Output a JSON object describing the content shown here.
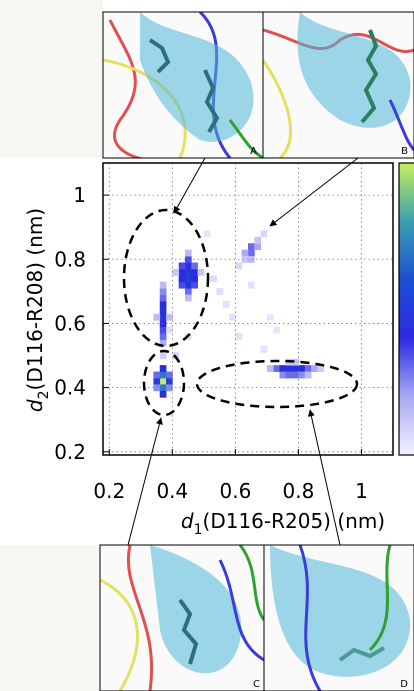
{
  "chart_data": {
    "type": "heatmap",
    "x_label": {
      "symbol": "d",
      "subscript": "1",
      "text": "(D116-R205) (nm)"
    },
    "y_label": {
      "symbol": "d",
      "subscript": "2",
      "text": "(D116-R208) (nm)"
    },
    "xlim": [
      0.18,
      1.1
    ],
    "ylim": [
      0.19,
      1.1
    ],
    "xticks": [
      0.2,
      0.4,
      0.6,
      0.8,
      1
    ],
    "yticks": [
      0.2,
      0.4,
      0.6,
      0.8,
      1
    ],
    "grid": true,
    "bin_size": 0.02,
    "zlim": [
      0,
      1
    ],
    "colormap": [
      "#f4f2ff",
      "#a9a9f5",
      "#2b2be2",
      "#1c4fd2",
      "#3a9fb0",
      "#c6f05a"
    ],
    "x": [
      0.37,
      0.37,
      0.37,
      0.35,
      0.39,
      0.37,
      0.37,
      0.35,
      0.39,
      0.35,
      0.39,
      0.37,
      0.37,
      0.37,
      0.37,
      0.37,
      0.37,
      0.37,
      0.37,
      0.37,
      0.35,
      0.39,
      0.37,
      0.37,
      0.45,
      0.45,
      0.45,
      0.45,
      0.45,
      0.45,
      0.43,
      0.43,
      0.43,
      0.43,
      0.47,
      0.47,
      0.47,
      0.47,
      0.45,
      0.45,
      0.41,
      0.49,
      0.65,
      0.65,
      0.63,
      0.67,
      0.63,
      0.67,
      0.65,
      0.69,
      0.61,
      0.73,
      0.75,
      0.77,
      0.79,
      0.81,
      0.83,
      0.85,
      0.87,
      0.71,
      0.75,
      0.77,
      0.79,
      0.81,
      0.83,
      0.77,
      0.79,
      0.55,
      0.57,
      0.53,
      0.59,
      0.61,
      0.69,
      0.73,
      0.71,
      0.65,
      0.41,
      0.45,
      0.51,
      0.39
    ],
    "y": [
      0.42,
      0.44,
      0.4,
      0.42,
      0.42,
      0.46,
      0.38,
      0.44,
      0.44,
      0.4,
      0.4,
      0.54,
      0.56,
      0.58,
      0.6,
      0.62,
      0.64,
      0.66,
      0.68,
      0.7,
      0.62,
      0.62,
      0.72,
      0.5,
      0.7,
      0.72,
      0.74,
      0.76,
      0.78,
      0.8,
      0.72,
      0.74,
      0.76,
      0.78,
      0.72,
      0.74,
      0.76,
      0.78,
      0.82,
      0.68,
      0.76,
      0.76,
      0.82,
      0.84,
      0.82,
      0.84,
      0.8,
      0.86,
      0.8,
      0.88,
      0.78,
      0.46,
      0.46,
      0.46,
      0.46,
      0.46,
      0.46,
      0.46,
      0.46,
      0.46,
      0.44,
      0.44,
      0.44,
      0.44,
      0.44,
      0.48,
      0.48,
      0.7,
      0.66,
      0.74,
      0.62,
      0.56,
      0.52,
      0.58,
      0.62,
      0.72,
      0.5,
      0.56,
      0.88,
      0.58
    ],
    "values": [
      1.0,
      0.7,
      0.7,
      0.5,
      0.5,
      0.4,
      0.4,
      0.3,
      0.3,
      0.25,
      0.25,
      0.2,
      0.3,
      0.35,
      0.4,
      0.45,
      0.45,
      0.4,
      0.3,
      0.25,
      0.15,
      0.15,
      0.15,
      0.1,
      0.3,
      0.45,
      0.5,
      0.5,
      0.45,
      0.35,
      0.35,
      0.4,
      0.4,
      0.35,
      0.35,
      0.4,
      0.4,
      0.3,
      0.15,
      0.15,
      0.12,
      0.12,
      0.3,
      0.3,
      0.2,
      0.2,
      0.12,
      0.12,
      0.15,
      0.08,
      0.08,
      0.3,
      0.4,
      0.45,
      0.45,
      0.4,
      0.3,
      0.2,
      0.1,
      0.15,
      0.25,
      0.3,
      0.3,
      0.25,
      0.15,
      0.12,
      0.12,
      0.06,
      0.05,
      0.06,
      0.05,
      0.05,
      0.05,
      0.04,
      0.04,
      0.05,
      0.08,
      0.05,
      0.04,
      0.06
    ],
    "panels": [
      {
        "label": "A"
      },
      {
        "label": "B"
      },
      {
        "label": "C"
      },
      {
        "label": "D"
      }
    ]
  }
}
